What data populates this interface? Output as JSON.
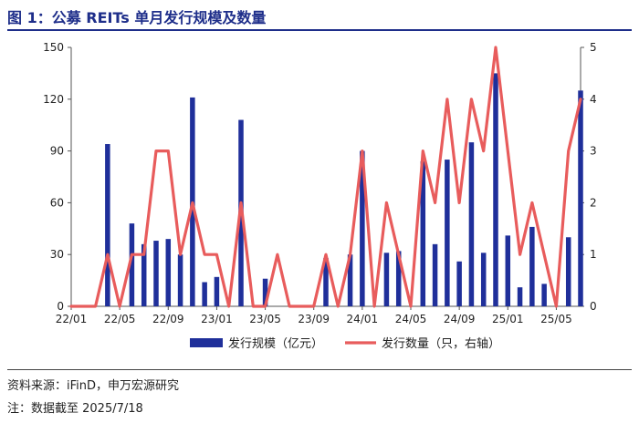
{
  "title": "图 1：公募 REITs 单月发行规模及数量",
  "source": "资料来源：iFinD，申万宏源研究",
  "note": "注：数据截至 2025/7/18",
  "colors": {
    "bar": "#1f2f9a",
    "line": "#e85c5c",
    "title": "#1e2e8a"
  },
  "chart_data": {
    "type": "bar+line",
    "x_tick_labels": [
      "22/01",
      "22/05",
      "22/09",
      "23/01",
      "23/05",
      "23/09",
      "24/01",
      "24/05",
      "24/09",
      "25/01",
      "25/05"
    ],
    "categories": [
      "22/01",
      "22/02",
      "22/03",
      "22/04",
      "22/05",
      "22/06",
      "22/07",
      "22/08",
      "22/09",
      "22/10",
      "22/11",
      "22/12",
      "23/01",
      "23/02",
      "23/03",
      "23/04",
      "23/05",
      "23/06",
      "23/07",
      "23/08",
      "23/09",
      "23/10",
      "23/11",
      "23/12",
      "24/01",
      "24/02",
      "24/03",
      "24/04",
      "24/05",
      "24/06",
      "24/07",
      "24/08",
      "24/09",
      "24/10",
      "24/11",
      "24/12",
      "25/01",
      "25/02",
      "25/03",
      "25/04",
      "25/05",
      "25/06",
      "25/07"
    ],
    "left_axis": {
      "ylim": [
        0,
        150
      ],
      "ticks": [
        "0",
        "30",
        "60",
        "90",
        "120",
        "150"
      ]
    },
    "right_axis": {
      "ylim": [
        0,
        5
      ],
      "ticks": [
        "0",
        "1",
        "2",
        "3",
        "4",
        "5"
      ]
    },
    "series": [
      {
        "name": "发行规模（亿元）",
        "type": "bar",
        "axis": "left",
        "values": [
          0,
          0,
          0,
          94,
          0,
          48,
          36,
          38,
          39,
          30,
          121,
          14,
          17,
          0,
          108,
          0,
          16,
          0,
          0,
          0,
          0,
          28,
          0,
          30,
          90,
          0,
          31,
          32,
          0,
          84,
          36,
          85,
          26,
          95,
          31,
          135,
          41,
          11,
          46,
          13,
          0,
          40,
          125
        ]
      },
      {
        "name": "发行数量（只，右轴）",
        "type": "line",
        "axis": "right",
        "values": [
          0,
          0,
          0,
          1,
          0,
          1,
          1,
          3,
          3,
          1,
          2,
          1,
          1,
          0,
          2,
          0,
          0,
          1,
          0,
          0,
          0,
          1,
          0,
          1,
          3,
          0,
          2,
          1,
          0,
          3,
          2,
          4,
          2,
          4,
          3,
          5,
          3,
          1,
          2,
          1,
          0,
          3,
          4
        ]
      }
    ],
    "legend_position": "bottom",
    "grid": false
  }
}
